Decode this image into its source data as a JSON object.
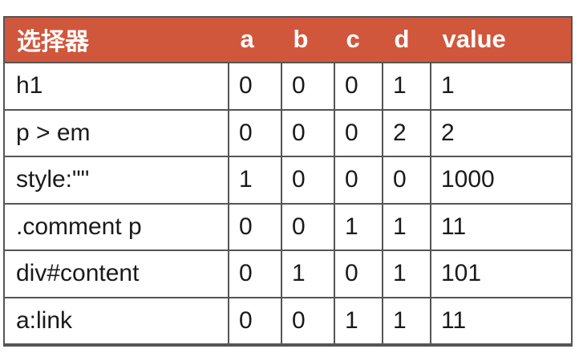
{
  "table": {
    "header": {
      "selector": "选择器",
      "a": "a",
      "b": "b",
      "c": "c",
      "d": "d",
      "value": "value"
    },
    "rows": [
      {
        "selector": "h1",
        "a": "0",
        "b": "0",
        "c": "0",
        "d": "1",
        "value": "1"
      },
      {
        "selector": "p > em",
        "a": "0",
        "b": "0",
        "c": "0",
        "d": "2",
        "value": "2"
      },
      {
        "selector": "style:\"\"",
        "a": "1",
        "b": "0",
        "c": "0",
        "d": "0",
        "value": "1000"
      },
      {
        "selector": ".comment p",
        "a": "0",
        "b": "0",
        "c": "1",
        "d": "1",
        "value": "11"
      },
      {
        "selector": "div#content",
        "a": "0",
        "b": "1",
        "c": "0",
        "d": "1",
        "value": "101"
      },
      {
        "selector": "a:link",
        "a": "0",
        "b": "0",
        "c": "1",
        "d": "1",
        "value": "11"
      }
    ],
    "colors": {
      "header_bg": "#d0573c",
      "header_text": "#ffffff",
      "border": "#555555",
      "cell_text": "#1a1a1a"
    }
  }
}
